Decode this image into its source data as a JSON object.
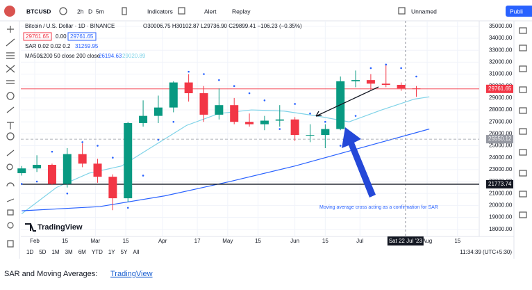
{
  "toolbar": {
    "symbol": "BTCUSD",
    "intervals": [
      "2h",
      "D",
      "5m"
    ],
    "indicators": "Indicators",
    "alert": "Alert",
    "replay": "Replay",
    "layout": "Unnamed",
    "publish": "Publi"
  },
  "legend": {
    "title": "Bitcoin / U.S. Dollar · 1D · BINANCE",
    "ohlc": "O30006.75 H30102.87 L29736.90 C29899.41 −106.23 (−0.35%)",
    "bid": "29761.65",
    "spread": "0.00",
    "ask": "29761.65",
    "sar": "SAR 0.02 0.02 0.2",
    "sar_value": "31259.95",
    "ma": "MA50&200 50 close 200 close",
    "ma50_value": "26194.63",
    "ma200_value": "29020.89"
  },
  "chart_data": {
    "type": "candlestick",
    "up_color": "#089981",
    "down_color": "#f23645",
    "x": [
      -6,
      1,
      8,
      15,
      22,
      29,
      36,
      43,
      50,
      57,
      64,
      71,
      78,
      85,
      92,
      99,
      106,
      113,
      120,
      127,
      134,
      141,
      148,
      155,
      162,
      169,
      176
    ],
    "open": [
      22700,
      23100,
      23400,
      21800,
      24300,
      23500,
      22400,
      20600,
      26900,
      27500,
      28200,
      30300,
      29400,
      27600,
      28400,
      27000,
      26800,
      27100,
      27200,
      25900,
      25900,
      26400,
      30400,
      30500,
      30200,
      30100,
      29800
    ],
    "high": [
      23300,
      24200,
      23500,
      24800,
      25200,
      23900,
      22600,
      27000,
      28800,
      29200,
      30400,
      31000,
      30000,
      29800,
      29000,
      27700,
      27500,
      28400,
      27400,
      26800,
      26800,
      30800,
      31300,
      31000,
      31800,
      30300,
      30000
    ],
    "low": [
      22500,
      22800,
      21700,
      21500,
      23200,
      21900,
      19600,
      20300,
      26600,
      26900,
      27800,
      28700,
      27000,
      27200,
      26800,
      26600,
      26300,
      26600,
      25400,
      25300,
      24800,
      26300,
      29900,
      29700,
      29900,
      29600,
      29100
    ],
    "close": [
      23100,
      23400,
      21800,
      24300,
      23500,
      22400,
      20600,
      26900,
      27500,
      28200,
      30300,
      29400,
      27600,
      28400,
      27000,
      26800,
      27100,
      27200,
      25900,
      25900,
      26400,
      30400,
      30500,
      30200,
      30100,
      29800,
      29760
    ],
    "sar": {
      "color": "#2962ff",
      "values": [
        21800,
        22000,
        24500,
        21000,
        25300,
        25000,
        24000,
        19800,
        22500,
        25500,
        27000,
        31200,
        31000,
        30500,
        30000,
        29400,
        28800,
        26400,
        28500,
        27700,
        27000,
        25000,
        27500,
        31500,
        31800,
        31500,
        30800
      ]
    },
    "lines": [
      {
        "color": "#7fd3e8",
        "x": [
          -6,
          10,
          25,
          40,
          55,
          70,
          85,
          100,
          115,
          130,
          145,
          160,
          175,
          182
        ],
        "values": [
          19300,
          21500,
          22700,
          23300,
          25000,
          26700,
          27700,
          28000,
          27900,
          27500,
          27000,
          28000,
          28900,
          29100
        ]
      },
      {
        "color": "#2962ff",
        "x": [
          -6,
          30,
          60,
          90,
          120,
          150,
          182
        ],
        "values": [
          19550,
          19900,
          20800,
          22000,
          23300,
          24800,
          26400
        ]
      }
    ],
    "levels": [
      {
        "value": 29761.65,
        "color": "#f23645",
        "style": "solid"
      },
      {
        "value": 25550.12,
        "color": "#9598a1",
        "style": "dashed"
      },
      {
        "value": 21773.74,
        "color": "#131722",
        "style": "solid"
      }
    ],
    "crosshair": {
      "x": 171,
      "label": "Sat 22 Jul '23"
    },
    "annotation": "Moving average cross acting as a confirmation for SAR",
    "xlim": [
      -6.4,
      205
    ],
    "ylim": [
      17400,
      35460
    ],
    "xticks": [
      {
        "value": 0,
        "label": "Feb"
      },
      {
        "value": 14,
        "label": "15"
      },
      {
        "value": 28,
        "label": "Mar"
      },
      {
        "value": 42,
        "label": "15"
      },
      {
        "value": 59,
        "label": "Apr"
      },
      {
        "value": 75,
        "label": "17"
      },
      {
        "value": 89,
        "label": "May"
      },
      {
        "value": 103,
        "label": "15"
      },
      {
        "value": 120,
        "label": "Jun"
      },
      {
        "value": 134,
        "label": "15"
      },
      {
        "value": 150,
        "label": "Jul"
      },
      {
        "value": 181,
        "label": "Aug"
      },
      {
        "value": 195,
        "label": "15"
      }
    ],
    "yticks": [
      {
        "value": 18000,
        "label": "18000.00"
      },
      {
        "value": 19000,
        "label": "19000.00"
      },
      {
        "value": 20000,
        "label": "20000.00"
      },
      {
        "value": 21000,
        "label": "21000.00"
      },
      {
        "value": 22000,
        "label": "22000.00"
      },
      {
        "value": 23000,
        "label": "23000.00"
      },
      {
        "value": 24000,
        "label": "24000.00"
      },
      {
        "value": 25000,
        "label": "25000.00"
      },
      {
        "value": 26000,
        "label": "26000.00"
      },
      {
        "value": 27000,
        "label": "27000.00"
      },
      {
        "value": 28000,
        "label": "28000.00"
      },
      {
        "value": 29000,
        "label": "29000.00"
      },
      {
        "value": 30000,
        "label": "30000.00"
      },
      {
        "value": 31000,
        "label": "31000.00"
      },
      {
        "value": 32000,
        "label": "32000.00"
      },
      {
        "value": 33000,
        "label": "33000.00"
      },
      {
        "value": 34000,
        "label": "34000.00"
      },
      {
        "value": 35000,
        "label": "35000.00"
      }
    ]
  },
  "bottom_bar": {
    "ranges": [
      "1D",
      "5D",
      "1M",
      "3M",
      "6M",
      "YTD",
      "1Y",
      "5Y",
      "All"
    ],
    "clock": "11:34:39 (UTC+5:30)"
  },
  "logo": "TradingView",
  "caption": {
    "text": "SAR and Moving Averages:",
    "link": "TradingView"
  }
}
